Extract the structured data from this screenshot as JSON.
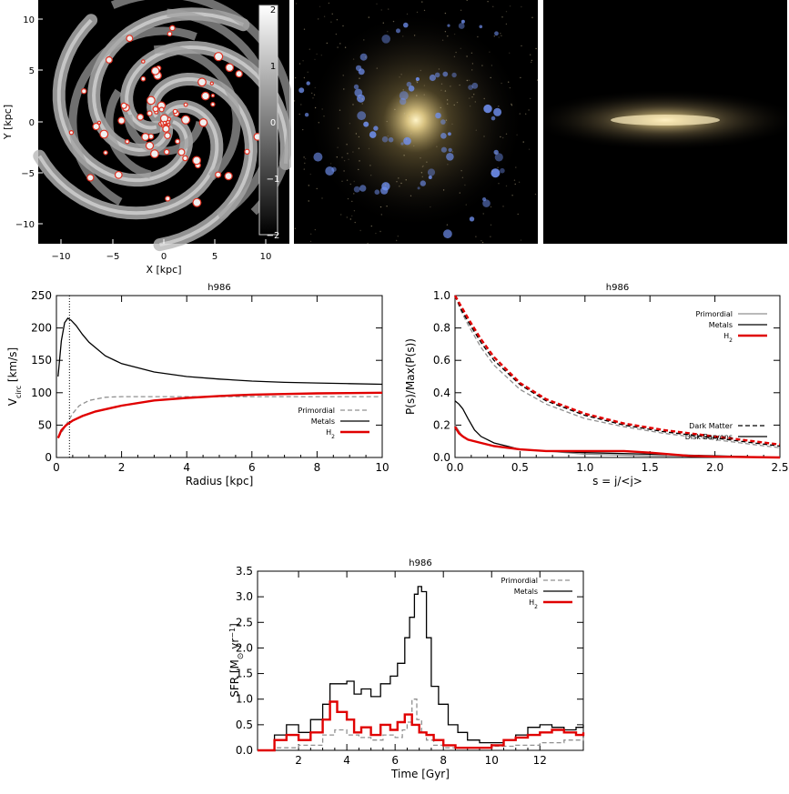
{
  "top_panels": {
    "gas_map": {
      "xlabel": "X [kpc]",
      "ylabel": "Y [kpc]",
      "xticks": [
        "−10",
        "−5",
        "0",
        "5",
        "10"
      ],
      "yticks": [
        "10",
        "5",
        "0",
        "−5",
        "−10"
      ],
      "colorbar_ticks": [
        "2",
        "1",
        "0",
        "−1",
        "−2"
      ],
      "colors": {
        "background": "#000000",
        "gas": "#b8b8b8",
        "h2_contour": "#e03020"
      }
    },
    "face_on_image": {
      "colors": {
        "background": "#000000",
        "bulge": "#f0d890",
        "young_stars": "#7090f0"
      }
    },
    "edge_on_image": {
      "colors": {
        "background": "#000000",
        "disk": "#f0d890"
      }
    }
  },
  "chart_data": [
    {
      "type": "line",
      "title": "h986",
      "xlabel": "Radius [kpc]",
      "ylabel_main": "V",
      "ylabel_sub": "circ",
      "ylabel_unit": " [km/s]",
      "xlim": [
        0,
        10
      ],
      "ylim": [
        0,
        250
      ],
      "xticks": [
        0,
        2,
        4,
        6,
        8,
        10
      ],
      "yticks": [
        0,
        50,
        100,
        150,
        200,
        250
      ],
      "vline_x": 0.4,
      "legend": "bottom-right",
      "series": [
        {
          "name": "Primordial",
          "color": "#909090",
          "dash": "dashed",
          "x": [
            0.05,
            0.2,
            0.35,
            0.5,
            0.7,
            1.0,
            1.5,
            2,
            3,
            4,
            6,
            8,
            10
          ],
          "y": [
            30,
            42,
            55,
            68,
            80,
            88,
            93,
            94,
            94,
            94,
            94,
            94,
            94
          ]
        },
        {
          "name": "Metals",
          "color": "#000000",
          "dash": "solid",
          "x": [
            0.05,
            0.15,
            0.25,
            0.35,
            0.45,
            0.6,
            0.8,
            1.0,
            1.5,
            2,
            3,
            4,
            5,
            6,
            7,
            8,
            9,
            10
          ],
          "y": [
            125,
            180,
            208,
            215,
            212,
            204,
            190,
            178,
            157,
            145,
            132,
            125,
            121,
            118,
            116,
            115,
            114,
            113
          ]
        },
        {
          "name": "H",
          "name_sub": "2",
          "color": "#e00000",
          "dash": "solid",
          "x": [
            0.05,
            0.15,
            0.3,
            0.5,
            0.8,
            1.2,
            2,
            3,
            4,
            5,
            6,
            7,
            8,
            9,
            10
          ],
          "y": [
            30,
            42,
            50,
            57,
            64,
            71,
            80,
            88,
            92,
            95,
            97,
            98,
            99,
            99.5,
            100
          ]
        }
      ]
    },
    {
      "type": "line",
      "title": "h986",
      "xlabel": "s = j/<j>",
      "ylabel": "P(s)/Max(P(s))",
      "xlim": [
        0,
        2.5
      ],
      "ylim": [
        0,
        1.0
      ],
      "xticks": [
        "0.0",
        "0.5",
        "1.0",
        "1.5",
        "2.0",
        "2.5"
      ],
      "yticks": [
        "0.0",
        "0.2",
        "0.4",
        "0.6",
        "0.8",
        "1.0"
      ],
      "legend": "top-right",
      "legend2": "middle-right",
      "line_styles": [
        {
          "name": "Dark Matter",
          "dash": "dashed"
        },
        {
          "name": "Disk Baryons",
          "dash": "solid"
        }
      ],
      "series": [
        {
          "name": "Primordial",
          "color": "#909090",
          "dash": "dashed",
          "x": [
            0.0,
            0.05,
            0.1,
            0.2,
            0.3,
            0.5,
            0.7,
            1.0,
            1.3,
            1.6,
            2.0,
            2.3,
            2.5
          ],
          "y": [
            1.0,
            0.9,
            0.82,
            0.68,
            0.57,
            0.42,
            0.33,
            0.24,
            0.19,
            0.15,
            0.11,
            0.08,
            0.06
          ]
        },
        {
          "name": "Metals",
          "color": "#000000",
          "dash": "dashed",
          "x": [
            0.0,
            0.05,
            0.1,
            0.2,
            0.3,
            0.5,
            0.7,
            1.0,
            1.3,
            1.6,
            2.0,
            2.3,
            2.5
          ],
          "y": [
            1.0,
            0.91,
            0.84,
            0.71,
            0.6,
            0.45,
            0.35,
            0.26,
            0.2,
            0.16,
            0.12,
            0.09,
            0.07
          ]
        },
        {
          "name": "H",
          "name_sub": "2",
          "color": "#e00000",
          "dash": "dashed",
          "x": [
            0.0,
            0.05,
            0.1,
            0.2,
            0.3,
            0.5,
            0.7,
            1.0,
            1.3,
            1.6,
            2.0,
            2.3,
            2.5
          ],
          "y": [
            1.0,
            0.93,
            0.86,
            0.73,
            0.62,
            0.46,
            0.36,
            0.27,
            0.21,
            0.17,
            0.13,
            0.1,
            0.08
          ]
        },
        {
          "name": "Primordial",
          "color": "#909090",
          "dash": "solid",
          "x": [
            0.0,
            0.05,
            0.1,
            0.2,
            0.3,
            0.5,
            0.7,
            1.0,
            1.5,
            2.0,
            2.5
          ],
          "y": [
            0.2,
            0.14,
            0.11,
            0.09,
            0.07,
            0.05,
            0.04,
            0.02,
            0.01,
            0.005,
            0.0
          ]
        },
        {
          "name": "Metals",
          "color": "#000000",
          "dash": "solid",
          "x": [
            0.0,
            0.03,
            0.06,
            0.1,
            0.15,
            0.2,
            0.3,
            0.4,
            0.5,
            0.7,
            1.0,
            1.5,
            2.0,
            2.5
          ],
          "y": [
            0.35,
            0.33,
            0.3,
            0.24,
            0.17,
            0.13,
            0.09,
            0.07,
            0.05,
            0.04,
            0.03,
            0.02,
            0.01,
            0.0
          ]
        },
        {
          "name": "H",
          "name_sub": "2",
          "color": "#e00000",
          "dash": "solid",
          "x": [
            0.0,
            0.03,
            0.06,
            0.1,
            0.2,
            0.3,
            0.5,
            0.7,
            1.0,
            1.3,
            1.5,
            1.8,
            2.0,
            2.5
          ],
          "y": [
            0.19,
            0.15,
            0.13,
            0.11,
            0.09,
            0.07,
            0.05,
            0.04,
            0.04,
            0.04,
            0.03,
            0.01,
            0.005,
            0.0
          ]
        }
      ]
    },
    {
      "type": "line",
      "title": "h986",
      "xlabel": "Time [Gyr]",
      "ylabel_main": "SFR [M",
      "ylabel_sun": "⊙",
      "ylabel_yr": " yr",
      "ylabel_exp": "−1",
      "ylabel_close": "]",
      "xlim": [
        0.3,
        13.8
      ],
      "ylim": [
        0,
        3.5
      ],
      "xticks": [
        2,
        4,
        6,
        8,
        10,
        12
      ],
      "yticks": [
        "0.0",
        "0.5",
        "1.0",
        "1.5",
        "2.0",
        "2.5",
        "3.0",
        "3.5"
      ],
      "legend": "top-right",
      "series": [
        {
          "name": "Primordial",
          "color": "#909090",
          "dash": "dashed",
          "x": [
            0.3,
            1,
            2,
            3,
            3.5,
            4,
            4.5,
            5,
            5.5,
            6,
            6.3,
            6.5,
            6.7,
            6.9,
            7.1,
            7.3,
            7.6,
            8,
            9,
            10,
            11,
            12,
            13,
            13.8
          ],
          "y": [
            0.0,
            0.05,
            0.1,
            0.3,
            0.4,
            0.3,
            0.25,
            0.2,
            0.3,
            0.25,
            0.4,
            0.55,
            1.0,
            0.6,
            0.35,
            0.2,
            0.1,
            0.05,
            0.05,
            0.08,
            0.1,
            0.15,
            0.2,
            0.25
          ]
        },
        {
          "name": "Metals",
          "color": "#000000",
          "dash": "solid",
          "x": [
            0.3,
            1,
            1.5,
            2,
            2.5,
            3,
            3.3,
            3.6,
            4,
            4.3,
            4.6,
            5,
            5.4,
            5.8,
            6.1,
            6.4,
            6.6,
            6.8,
            6.95,
            7.1,
            7.3,
            7.5,
            7.8,
            8.2,
            8.6,
            9,
            9.5,
            10,
            10.5,
            11,
            11.5,
            12,
            12.5,
            13,
            13.5,
            13.8
          ],
          "y": [
            0.0,
            0.3,
            0.5,
            0.35,
            0.6,
            0.9,
            1.3,
            1.3,
            1.35,
            1.1,
            1.2,
            1.05,
            1.3,
            1.45,
            1.7,
            2.2,
            2.6,
            3.05,
            3.2,
            3.1,
            2.2,
            1.25,
            0.9,
            0.5,
            0.35,
            0.2,
            0.15,
            0.15,
            0.2,
            0.3,
            0.45,
            0.5,
            0.45,
            0.4,
            0.45,
            0.5
          ]
        },
        {
          "name": "H",
          "name_sub": "2",
          "color": "#e00000",
          "dash": "solid",
          "x": [
            0.3,
            1,
            1.5,
            2,
            2.5,
            3,
            3.3,
            3.6,
            4,
            4.3,
            4.6,
            5,
            5.4,
            5.8,
            6.1,
            6.4,
            6.7,
            7,
            7.3,
            7.6,
            8,
            8.5,
            9,
            9.5,
            10,
            10.5,
            11,
            11.5,
            12,
            12.5,
            13,
            13.5,
            13.8
          ],
          "y": [
            0.0,
            0.2,
            0.3,
            0.2,
            0.35,
            0.6,
            0.95,
            0.75,
            0.6,
            0.35,
            0.45,
            0.3,
            0.5,
            0.4,
            0.55,
            0.7,
            0.5,
            0.35,
            0.3,
            0.2,
            0.1,
            0.05,
            0.05,
            0.05,
            0.1,
            0.2,
            0.25,
            0.3,
            0.35,
            0.4,
            0.35,
            0.3,
            0.35
          ]
        }
      ]
    }
  ]
}
